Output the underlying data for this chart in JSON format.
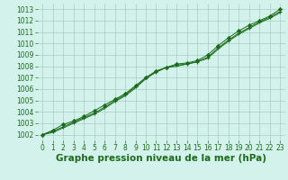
{
  "title": "Graphe pression niveau de la mer (hPa)",
  "x_values": [
    0,
    1,
    2,
    3,
    4,
    5,
    6,
    7,
    8,
    9,
    10,
    11,
    12,
    13,
    14,
    15,
    16,
    17,
    18,
    19,
    20,
    21,
    22,
    23
  ],
  "line1": [
    1002.0,
    1002.3,
    1002.7,
    1003.1,
    1003.5,
    1003.9,
    1004.4,
    1005.0,
    1005.5,
    1006.2,
    1007.0,
    1007.5,
    1007.9,
    1008.1,
    1008.2,
    1008.4,
    1008.8,
    1009.6,
    1010.3,
    1010.9,
    1011.4,
    1011.9,
    1012.3,
    1012.8
  ],
  "line2": [
    1002.0,
    1002.4,
    1002.9,
    1003.2,
    1003.6,
    1004.1,
    1004.6,
    1005.1,
    1005.6,
    1006.3,
    1007.0,
    1007.6,
    1007.9,
    1008.2,
    1008.3,
    1008.5,
    1009.0,
    1009.8,
    1010.5,
    1011.1,
    1011.6,
    1012.0,
    1012.4,
    1013.0
  ],
  "line3": [
    1002.0,
    1002.2,
    1002.6,
    1003.0,
    1003.4,
    1003.8,
    1004.3,
    1004.9,
    1005.4,
    1006.1,
    1006.9,
    1007.5,
    1007.9,
    1008.0,
    1008.2,
    1008.4,
    1008.7,
    1009.5,
    1010.2,
    1010.8,
    1011.3,
    1011.8,
    1012.2,
    1012.7
  ],
  "ylim": [
    1001.5,
    1013.5
  ],
  "xlim": [
    -0.5,
    23.5
  ],
  "yticks": [
    1002,
    1003,
    1004,
    1005,
    1006,
    1007,
    1008,
    1009,
    1010,
    1011,
    1012,
    1013
  ],
  "xticks": [
    0,
    1,
    2,
    3,
    4,
    5,
    6,
    7,
    8,
    9,
    10,
    11,
    12,
    13,
    14,
    15,
    16,
    17,
    18,
    19,
    20,
    21,
    22,
    23
  ],
  "line_color": "#1a6b1a",
  "marker_color": "#1a6b1a",
  "bg_plot": "#d4f2ec",
  "bg_fig": "#d4f2ec",
  "grid_color": "#a8ccc8",
  "title_color": "#1a6b1a",
  "tick_color": "#1a6b1a",
  "title_fontsize": 7.5,
  "tick_fontsize": 5.5
}
